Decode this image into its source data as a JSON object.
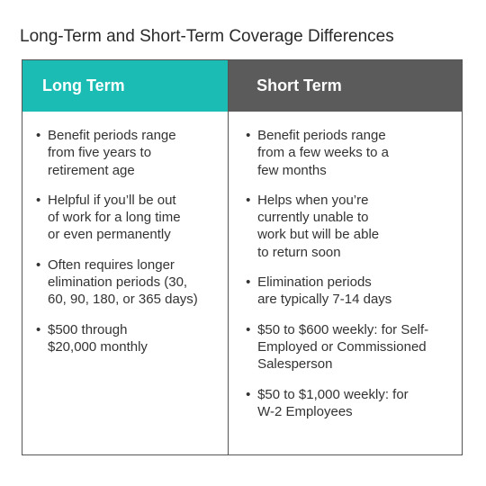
{
  "header": {
    "title": "Long-Term and Short-Term Coverage Differences"
  },
  "table": {
    "columns": [
      {
        "heading": "Long Term",
        "items": [
          [
            "Benefit periods range",
            "from five years to",
            "retirement age"
          ],
          [
            "Helpful if you’ll be out",
            "of work for a long time",
            "or even permanently"
          ],
          [
            "Often requires longer",
            "elimination periods (30,",
            "60, 90, 180, or 365 days)"
          ],
          [
            "$500 through",
            "$20,000 monthly"
          ]
        ]
      },
      {
        "heading": "Short Term",
        "items": [
          [
            "Benefit periods range",
            "from a few weeks to a",
            "few months"
          ],
          [
            "Helps when you’re",
            "currently unable to",
            "work but will be able",
            "to return soon"
          ],
          [
            "Elimination periods",
            "are typically 7-14 days"
          ],
          [
            "$50 to $600 weekly: for Self-",
            "Employed or Commissioned",
            "Salesperson"
          ],
          [
            "$50 to $1,000 weekly: for",
            "W-2 Employees"
          ]
        ]
      }
    ]
  }
}
